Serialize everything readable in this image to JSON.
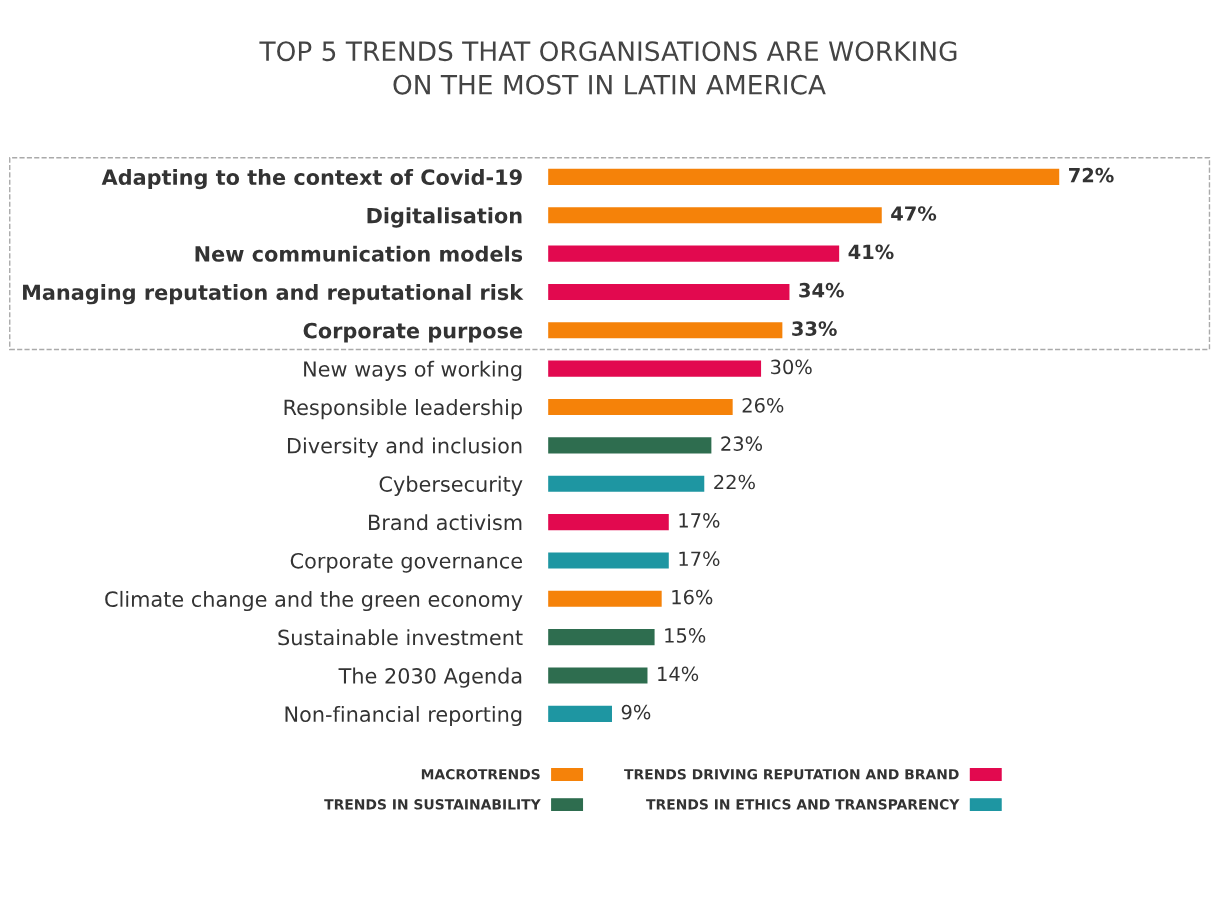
{
  "chart_data": {
    "type": "bar",
    "orientation": "horizontal",
    "title": "TOP 5 TRENDS THAT ORGANISATIONS ARE WORKING\nON THE MOST IN LATIN AMERICA",
    "categories": [
      "Adapting to the context of Covid-19",
      "Digitalisation",
      "New communication models",
      "Managing reputation and reputational risk",
      "Corporate purpose",
      "New ways of working",
      "Responsible leadership",
      "Diversity and inclusion",
      "Cybersecurity",
      "Brand activism",
      "Corporate governance",
      "Climate change and the green economy",
      "Sustainable investment",
      "The 2030 Agenda",
      "Non-financial reporting"
    ],
    "series": [
      {
        "name": "MACROTRENDS",
        "color": "#f58209",
        "values": [
          72,
          47,
          null,
          null,
          33,
          null,
          26,
          null,
          null,
          null,
          null,
          16,
          null,
          null,
          null
        ],
        "value_labels": [
          "72%",
          "47%",
          null,
          null,
          "33%",
          null,
          "26%",
          null,
          null,
          null,
          null,
          "16%",
          null,
          null,
          null
        ]
      },
      {
        "name": "TRENDS DRIVING REPUTATION AND BRAND",
        "color": "#e2094f",
        "values": [
          null,
          null,
          41,
          34,
          null,
          30,
          null,
          null,
          null,
          17,
          null,
          null,
          null,
          null,
          null
        ],
        "value_labels": [
          null,
          null,
          "41%",
          "34%",
          null,
          "30%",
          null,
          null,
          null,
          "17%",
          null,
          null,
          null,
          null,
          null
        ]
      },
      {
        "name": "TRENDS IN SUSTAINABILITY",
        "color": "#2e6d4f",
        "values": [
          null,
          null,
          null,
          null,
          null,
          null,
          null,
          23,
          null,
          null,
          null,
          null,
          15,
          14,
          null
        ],
        "value_labels": [
          null,
          null,
          null,
          null,
          null,
          null,
          null,
          "23%",
          null,
          null,
          null,
          null,
          "15%",
          "14%",
          null
        ]
      },
      {
        "name": "TRENDS IN ETHICS AND TRANSPARENCY",
        "color": "#1e96a2",
        "values": [
          null,
          null,
          null,
          null,
          null,
          null,
          null,
          null,
          22,
          null,
          17,
          null,
          null,
          null,
          9
        ],
        "value_labels": [
          null,
          null,
          null,
          null,
          null,
          null,
          null,
          null,
          "22%",
          null,
          "17%",
          null,
          null,
          null,
          "9%"
        ]
      }
    ],
    "legend": "bottom",
    "grid": false
  }
}
